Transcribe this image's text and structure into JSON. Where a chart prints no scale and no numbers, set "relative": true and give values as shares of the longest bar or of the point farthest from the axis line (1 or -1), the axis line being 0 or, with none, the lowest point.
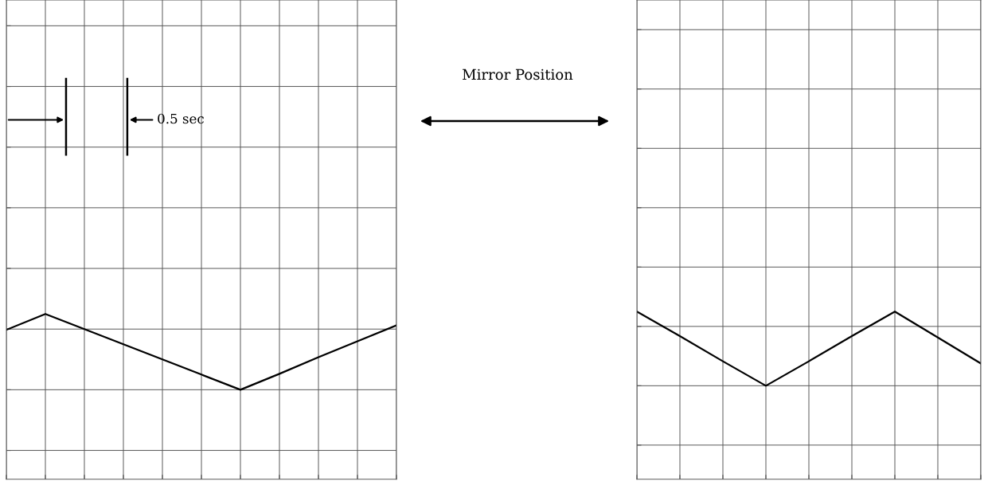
{
  "chart_data": [
    {
      "type": "line",
      "relative": true,
      "categories": [
        null,
        null,
        null,
        null,
        null,
        null,
        null,
        null,
        null,
        null,
        null
      ],
      "grid": true,
      "line_style": "solid",
      "series": [
        {
          "color": "#000000",
          "values": [
            0.79,
            1,
            0.8,
            0.6,
            0.4,
            0.2,
            0,
            0.21,
            0.43,
            0.64,
            0.85
          ]
        }
      ],
      "annotations": [
        "0.5 sec"
      ]
    },
    {
      "type": "line",
      "relative": true,
      "categories": [
        null,
        null,
        null,
        null,
        null,
        null,
        null,
        null,
        null
      ],
      "grid": true,
      "line_style": "solid",
      "series": [
        {
          "color": "#000000",
          "values": [
            1,
            0.67,
            0.33,
            0,
            0.33,
            0.67,
            1,
            0.65,
            0.3
          ]
        }
      ],
      "annotations": [
        "Mirror Position"
      ]
    }
  ]
}
